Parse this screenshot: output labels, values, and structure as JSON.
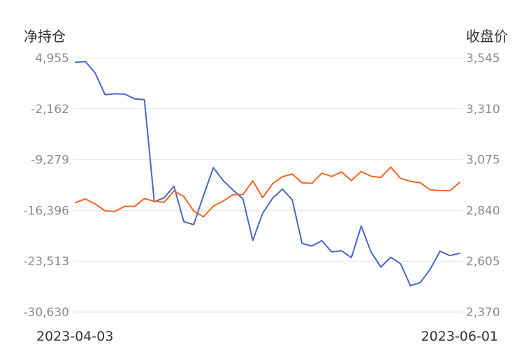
{
  "chart_data": {
    "type": "line",
    "y_left_label": "净持仓",
    "y_right_label": "收盘价",
    "y_left_ticks": [
      "4,955",
      "-2,162",
      "-9,279",
      "-16,396",
      "-23,513",
      "-30,630"
    ],
    "y_right_ticks": [
      "3,545",
      "3,310",
      "3,075",
      "2,840",
      "2,605",
      "2,370"
    ],
    "y_left_range": [
      -30630,
      4955
    ],
    "y_right_range": [
      2370,
      3545
    ],
    "x_tick_labels": [
      "2023-04-03",
      "2023-06-01"
    ],
    "grid": true,
    "colors": {
      "net_position": "#4a64c8",
      "close_price": "#f26522",
      "grid": "#e6e6e6"
    },
    "series": [
      {
        "axis": "left",
        "color": "#4a64c8",
        "values": [
          4350,
          4450,
          2850,
          -190,
          -70,
          -110,
          -770,
          -890,
          -15190,
          -14630,
          -13020,
          -17980,
          -18390,
          -14320,
          -10400,
          -12230,
          -13560,
          -14760,
          -20590,
          -16800,
          -14700,
          -13420,
          -14920,
          -21020,
          -21390,
          -20640,
          -22200,
          -22050,
          -23010,
          -18600,
          -22240,
          -24330,
          -22950,
          -23870,
          -26940,
          -26490,
          -24650,
          -22110,
          -22730,
          -22400
        ]
      },
      {
        "axis": "right",
        "color": "#f26522",
        "values": [
          2876,
          2893,
          2870,
          2838,
          2835,
          2859,
          2858,
          2895,
          2882,
          2877,
          2930,
          2904,
          2837,
          2810,
          2860,
          2883,
          2913,
          2913,
          2977,
          2899,
          2963,
          2996,
          3008,
          2968,
          2965,
          3012,
          2997,
          3018,
          2978,
          3020,
          2998,
          2992,
          3040,
          2988,
          2974,
          2968,
          2935,
          2932,
          2931,
          2970
        ]
      }
    ]
  }
}
